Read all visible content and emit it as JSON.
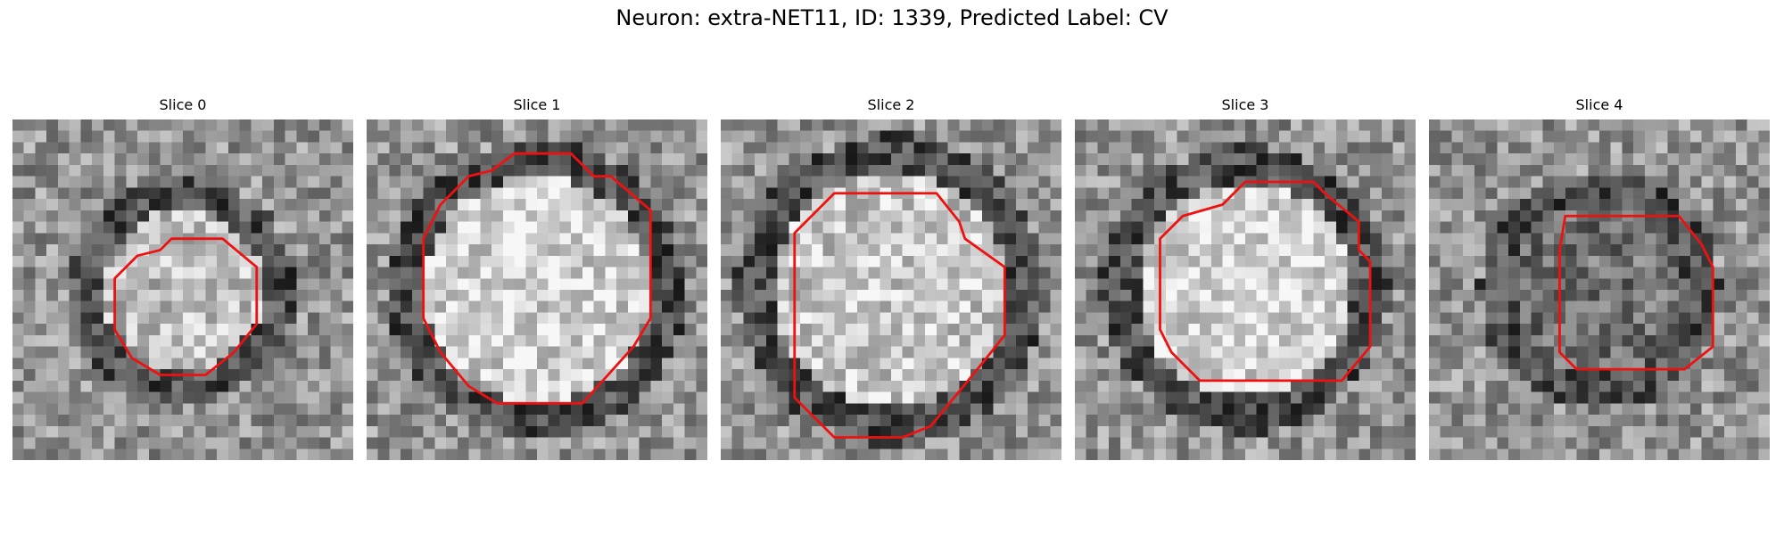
{
  "title": "Neuron: extra-NET11, ID: 1339, Predicted Label: CV",
  "contour_color": "#ee1111",
  "slices": [
    {
      "label": "Slice 0",
      "seed": 11,
      "ring_radius": 8.5,
      "bright_center": 0.62
    },
    {
      "label": "Slice 1",
      "seed": 27,
      "ring_radius": 11.5,
      "bright_center": 0.7
    },
    {
      "label": "Slice 2",
      "seed": 43,
      "ring_radius": 12.0,
      "bright_center": 0.66
    },
    {
      "label": "Slice 3",
      "seed": 59,
      "ring_radius": 11.0,
      "bright_center": 0.72
    },
    {
      "label": "Slice 4",
      "seed": 71,
      "ring_radius": 9.0,
      "bright_center": 0.32
    }
  ]
}
